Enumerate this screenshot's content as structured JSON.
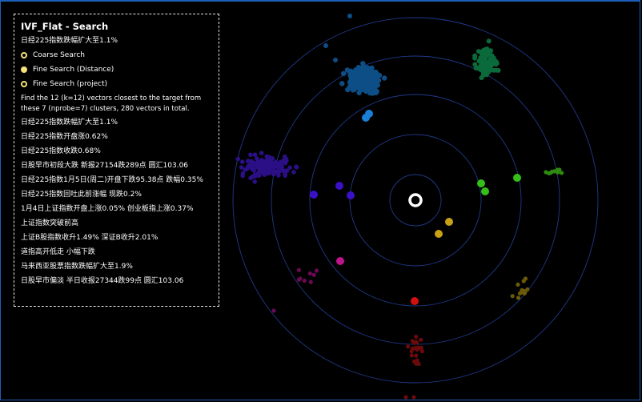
{
  "panel": {
    "title": "IVF_Flat - Search",
    "target_text": "日经225指数跌幅扩大至1.1%",
    "legend": [
      {
        "label": "Coarse Search",
        "style": "ring"
      },
      {
        "label": "Fine Search (Distance)",
        "style": "solid"
      },
      {
        "label": "Fine Search (project)",
        "style": "ring"
      }
    ],
    "description": "Find the 12 (k=12) vectors closest to the target from these 7 (nprobe=7) clusters, 280 vectors in total.",
    "results": [
      "日经225指数跌幅扩大至1.1%",
      "日经225指数开盘涨0.62%",
      "日经225指数收跌0.68%",
      "日股早市初段大跌 新报27154跌289点 圆汇103.06",
      "日经225指数1月5日(周二)开盘下跌95.38点 跌幅0.35%",
      "日经225指数回吐此前涨幅 现跌0.2%",
      "1月4日上证指数开盘上涨0.05% 创业板指上涨0.37%",
      "上证指数突破前高",
      "上证B股指数收升1.49% 深证B收升2.01%",
      "道指高开低走 小幅下跌",
      "马来西亚股票指数跌幅扩大至1.9%",
      "日股早市偏淡 半日收报27344跌99点 圆汇103.06"
    ]
  },
  "colors": {
    "frame": "#1b5fb8",
    "rings": "#1f3a8a",
    "target": "#ffffff",
    "legend_accent": "#f6e27a"
  }
}
